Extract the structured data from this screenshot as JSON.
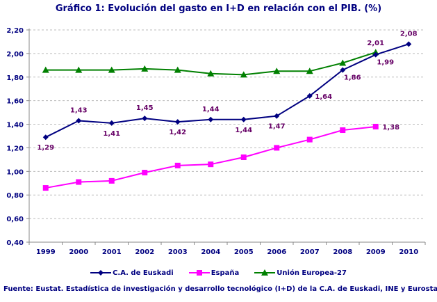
{
  "chart_data": {
    "type": "line",
    "title": "Gráfico 1: Evolución del gasto en I+D en relación con el PIB. (%)",
    "categories": [
      "1999",
      "2000",
      "2001",
      "2002",
      "2003",
      "2004",
      "2005",
      "2006",
      "2007",
      "2008",
      "2009",
      "2010"
    ],
    "ylim": [
      0.4,
      2.2
    ],
    "yticks": [
      "0,40",
      "0,60",
      "0,80",
      "1,00",
      "1,20",
      "1,40",
      "1,60",
      "1,80",
      "2,00",
      "2,20"
    ],
    "grid": true,
    "legend_position": "bottom",
    "series": [
      {
        "name": "C.A. de Euskadi",
        "color": "#000080",
        "marker": "diamond",
        "values": [
          1.29,
          1.43,
          1.41,
          1.45,
          1.42,
          1.44,
          1.44,
          1.47,
          1.64,
          1.86,
          1.99,
          2.08
        ],
        "labels": [
          "1,29",
          "1,43",
          "1,41",
          "1,45",
          "1,42",
          "1,44",
          "1,44",
          "1,47",
          "1,64",
          "1,86",
          "1,99",
          "2,08"
        ]
      },
      {
        "name": "España",
        "color": "#ff00ff",
        "marker": "square",
        "values": [
          0.86,
          0.91,
          0.92,
          0.99,
          1.05,
          1.06,
          1.12,
          1.2,
          1.27,
          1.35,
          1.38,
          null
        ],
        "labels": [
          null,
          null,
          null,
          null,
          null,
          null,
          null,
          null,
          null,
          null,
          "1,38",
          null
        ]
      },
      {
        "name": "Unión Europea-27",
        "color": "#008000",
        "marker": "triangle",
        "values": [
          1.86,
          1.86,
          1.86,
          1.87,
          1.86,
          1.83,
          1.82,
          1.85,
          1.85,
          1.92,
          2.01,
          null
        ],
        "labels": [
          null,
          null,
          null,
          null,
          null,
          null,
          null,
          null,
          null,
          null,
          "2,01",
          null
        ]
      }
    ]
  },
  "source": "Fuente: Eustat. Estadística de investigación y desarrollo tecnológico (I+D) de la C.A. de Euskadi,  INE y Eurostat"
}
